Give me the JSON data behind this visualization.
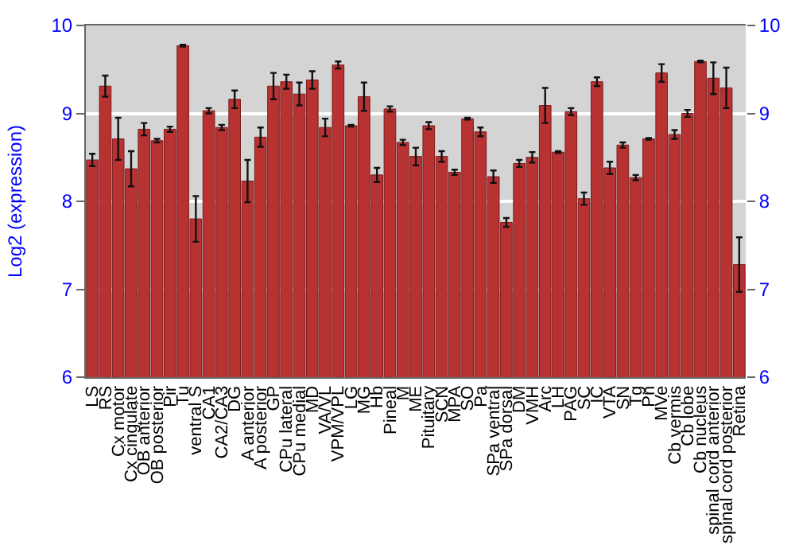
{
  "chart_data": {
    "type": "bar",
    "ylabel": "Log2 (expression)",
    "categories": [
      "LS",
      "RS",
      "Cx motor",
      "Cx cingulate",
      "OB anterior",
      "OB posterior",
      "Pir",
      "Tu",
      "ventral S",
      "CA1",
      "CA2/CA3",
      "DG",
      "A anterior",
      "A posterior",
      "GP",
      "CPu lateral",
      "CPu medial",
      "MD",
      "VA/VL",
      "VPM/VPL",
      "LG",
      "MG",
      "Hb",
      "Pineal",
      "M",
      "ME",
      "Pituitary",
      "SCN",
      "MPA",
      "SO",
      "Pa",
      "SPa ventral",
      "SPa dorsal",
      "DM",
      "VMH",
      "Arc",
      "LH",
      "PAG",
      "SC",
      "IC",
      "VTA",
      "SN",
      "Tg",
      "Pn",
      "MVe",
      "Cb vermis",
      "Cb lobe",
      "Cb nucleus",
      "spinal cord anterior",
      "spinal cord posterior",
      "Retina"
    ],
    "values": [
      8.47,
      9.31,
      8.71,
      8.37,
      8.82,
      8.69,
      8.82,
      9.77,
      7.8,
      9.03,
      8.84,
      9.16,
      8.23,
      8.73,
      9.31,
      9.36,
      9.22,
      9.38,
      8.84,
      9.55,
      8.86,
      9.19,
      8.3,
      9.05,
      8.67,
      8.51,
      8.86,
      8.51,
      8.33,
      8.94,
      8.79,
      8.28,
      7.76,
      8.43,
      8.5,
      9.09,
      8.56,
      9.02,
      8.03,
      9.36,
      8.38,
      8.64,
      8.27,
      8.71,
      9.46,
      8.76,
      9.0,
      9.59,
      9.4,
      9.29,
      7.28
    ],
    "errors": [
      0.07,
      0.12,
      0.24,
      0.2,
      0.07,
      0.02,
      0.03,
      0.01,
      0.26,
      0.03,
      0.03,
      0.1,
      0.24,
      0.11,
      0.15,
      0.08,
      0.13,
      0.1,
      0.1,
      0.04,
      0.01,
      0.16,
      0.08,
      0.03,
      0.03,
      0.1,
      0.04,
      0.06,
      0.03,
      0.01,
      0.05,
      0.07,
      0.05,
      0.04,
      0.06,
      0.2,
      0.01,
      0.04,
      0.07,
      0.05,
      0.07,
      0.03,
      0.03,
      0.01,
      0.1,
      0.05,
      0.04,
      0.01,
      0.18,
      0.23,
      0.31
    ],
    "color": "#b83232",
    "ylim": [
      6,
      10
    ],
    "yticks": [
      6,
      7,
      8,
      9,
      10
    ],
    "y2lim": [
      6,
      10
    ],
    "y2ticks": [
      6,
      7,
      8,
      9,
      10
    ],
    "grid": "y"
  }
}
